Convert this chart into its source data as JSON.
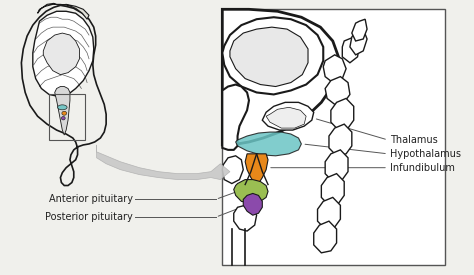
{
  "bg_color": "#f0f0ec",
  "line_color": "#1a1a1a",
  "colors": {
    "hypothalamus": "#6bc5c5",
    "anterior_pit": "#9abe52",
    "posterior_pit": "#8b4aab",
    "infundibulum": "#e8881a",
    "arrow": "#c8c8c8",
    "arrow_edge": "#aaaaaa",
    "white": "#ffffff",
    "box_edge": "#666666"
  },
  "labels": {
    "thalamus": "Thalamus",
    "hypothalamus": "Hypothalamus",
    "infundibulum": "Infundibulum",
    "anterior": "Anterior pituitary",
    "posterior": "Posterior pituitary"
  },
  "label_fontsize": 7.0,
  "label_color": "#222222"
}
